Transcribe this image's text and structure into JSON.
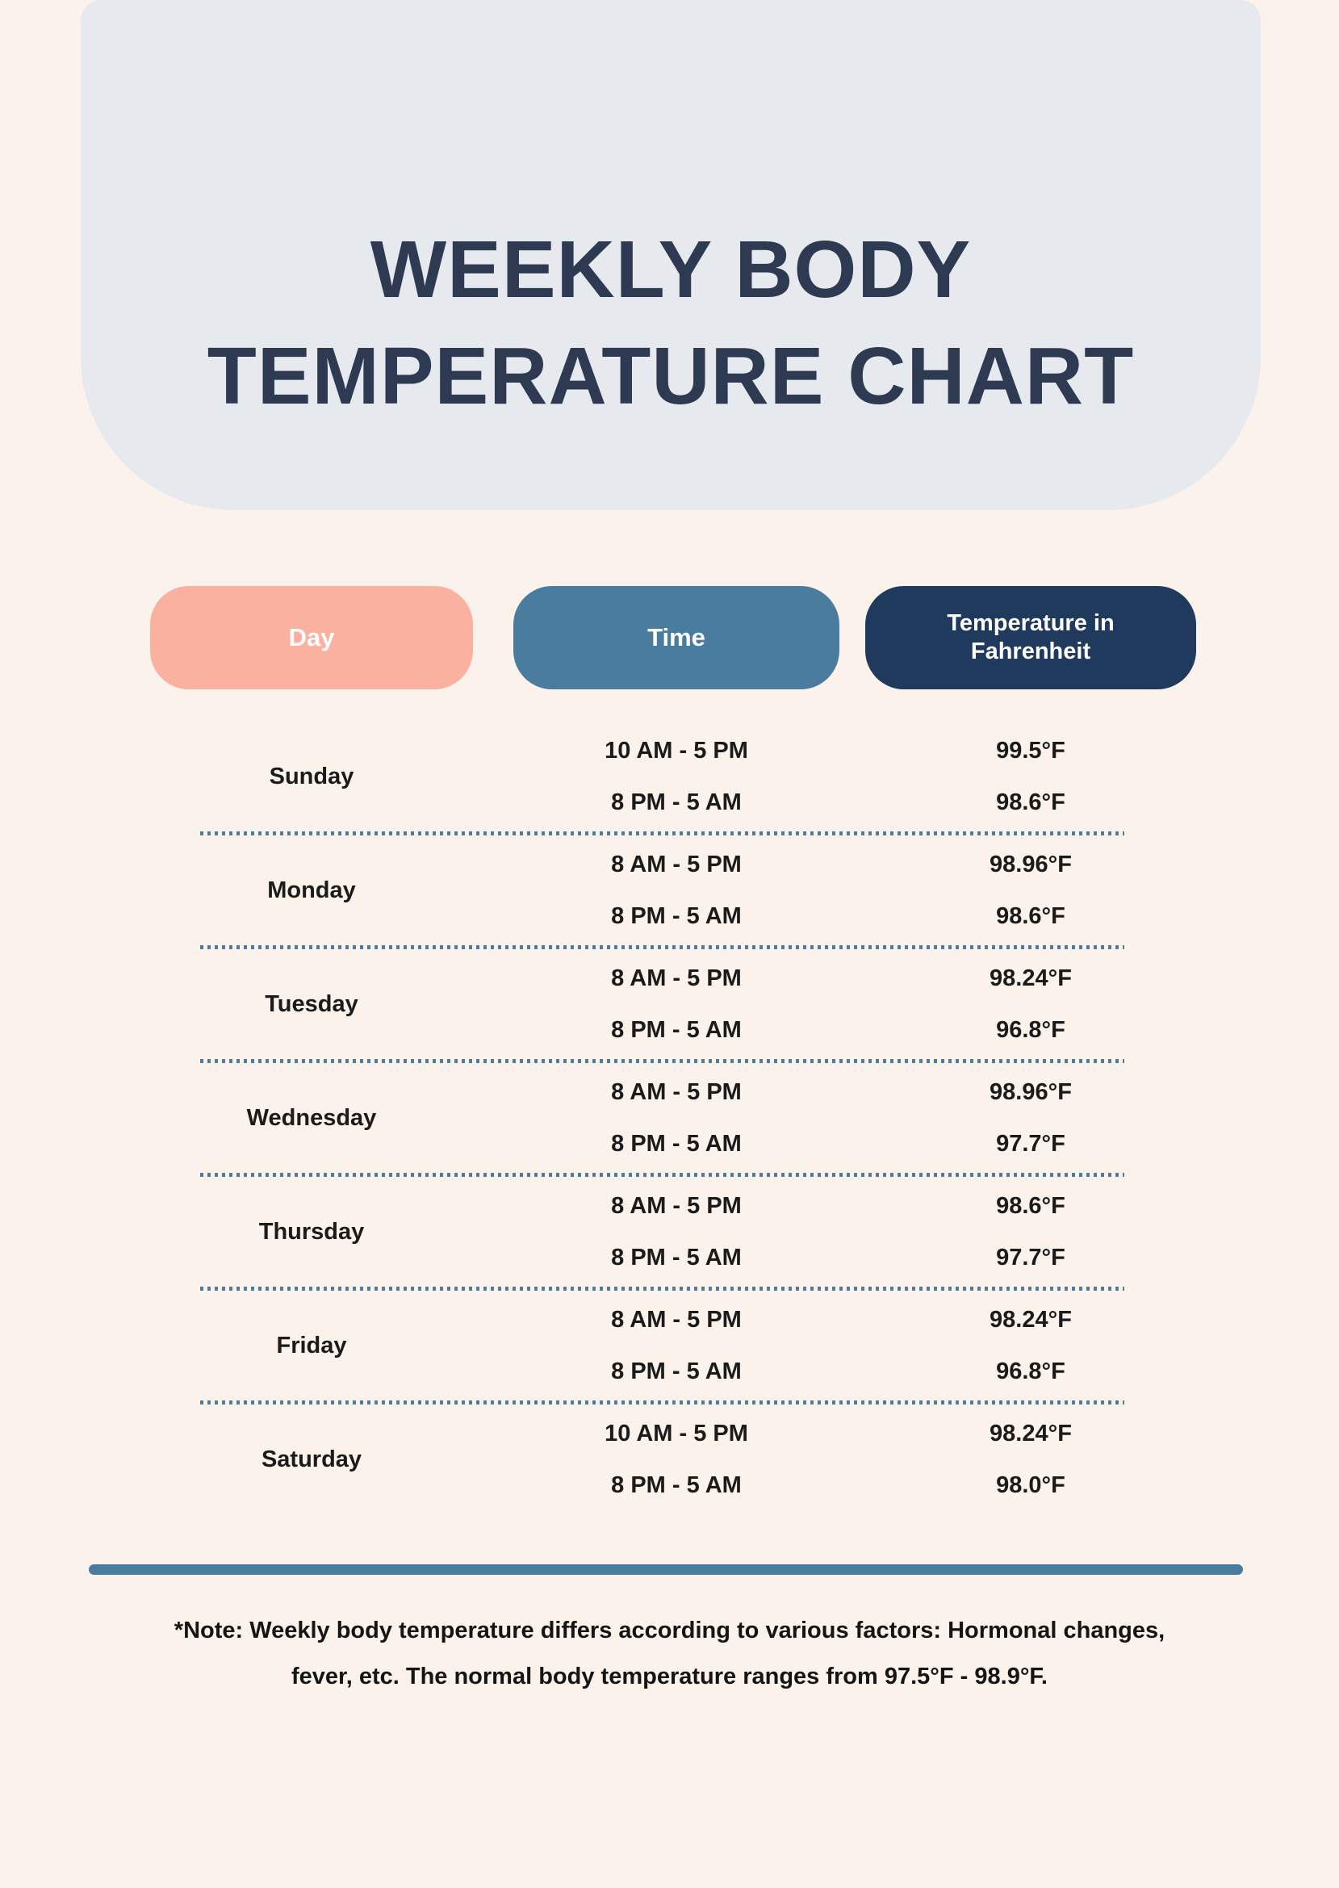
{
  "title": {
    "line1": "WEEKLY BODY",
    "line2": "TEMPERATURE CHART"
  },
  "columns": {
    "day": "Day",
    "time": "Time",
    "temperature": "Temperature in Fahrenheit"
  },
  "table": {
    "rows": [
      {
        "day": "Sunday",
        "entries": [
          {
            "time": "10 AM - 5 PM",
            "temp": "99.5°F"
          },
          {
            "time": "8 PM - 5 AM",
            "temp": "98.6°F"
          }
        ]
      },
      {
        "day": "Monday",
        "entries": [
          {
            "time": "8 AM - 5 PM",
            "temp": "98.96°F"
          },
          {
            "time": "8 PM - 5 AM",
            "temp": "98.6°F"
          }
        ]
      },
      {
        "day": "Tuesday",
        "entries": [
          {
            "time": "8 AM - 5 PM",
            "temp": "98.24°F"
          },
          {
            "time": "8 PM - 5 AM",
            "temp": "96.8°F"
          }
        ]
      },
      {
        "day": "Wednesday",
        "entries": [
          {
            "time": "8 AM - 5 PM",
            "temp": "98.96°F"
          },
          {
            "time": "8 PM - 5 AM",
            "temp": "97.7°F"
          }
        ]
      },
      {
        "day": "Thursday",
        "entries": [
          {
            "time": "8 AM - 5 PM",
            "temp": "98.6°F"
          },
          {
            "time": "8 PM - 5 AM",
            "temp": "97.7°F"
          }
        ]
      },
      {
        "day": "Friday",
        "entries": [
          {
            "time": "8 AM - 5 PM",
            "temp": "98.24°F"
          },
          {
            "time": "8 PM - 5 AM",
            "temp": "96.8°F"
          }
        ]
      },
      {
        "day": "Saturday",
        "entries": [
          {
            "time": "10 AM - 5 PM",
            "temp": "98.24°F"
          },
          {
            "time": "8 PM - 5 AM",
            "temp": "98.0°F"
          }
        ]
      }
    ]
  },
  "note": {
    "line1": "*Note: Weekly body temperature differs according to various factors: Hormonal changes,",
    "line2": "fever, etc. The normal body temperature ranges from 97.5°F - 98.9°F."
  },
  "colors": {
    "page_bg": "#FBF2EB",
    "header_bg": "#E6EAEF",
    "title_text": "#2E3A52",
    "day_pill": "#FBB1A0",
    "time_pill": "#4A7C9E",
    "temp_pill": "#1F3A5C",
    "pill_text": "#FFFFFF",
    "body_text": "#1B1B1B",
    "dotted_line": "#4D7D9C",
    "bottom_bar": "#4A7C9E",
    "note_text": "#151515"
  }
}
